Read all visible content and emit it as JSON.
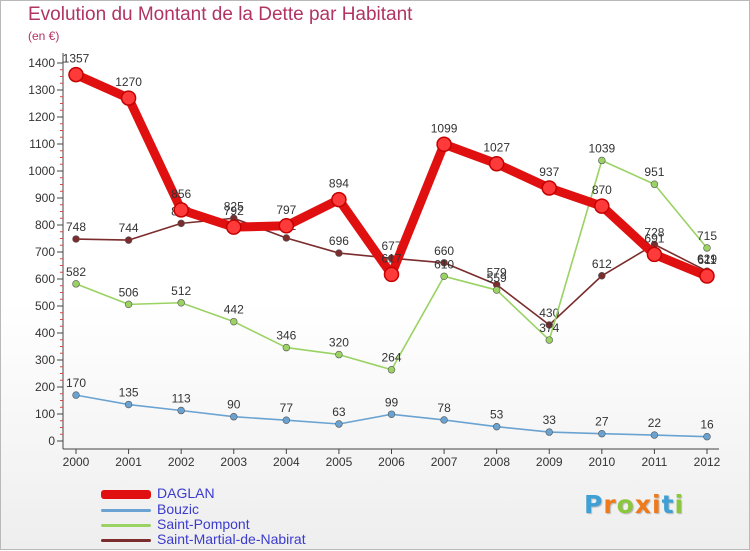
{
  "title": "Evolution du Montant de la Dette par Habitant",
  "unit_label": "(en €)",
  "logo": {
    "letters": [
      "P",
      "r",
      "o",
      "x",
      "i",
      "t",
      "i"
    ],
    "colors": [
      "#3fa0d6",
      "#f07a1a",
      "#8cc63f",
      "#f07a1a",
      "#f07a1a",
      "#3fa0d6",
      "#8cc63f"
    ]
  },
  "chart_data": {
    "type": "line",
    "x": [
      "2000",
      "2001",
      "2002",
      "2003",
      "2004",
      "2005",
      "2006",
      "2007",
      "2008",
      "2009",
      "2010",
      "2011",
      "2012"
    ],
    "ylim": [
      0,
      1400
    ],
    "yticks": [
      0,
      100,
      200,
      300,
      400,
      500,
      600,
      700,
      800,
      900,
      1000,
      1100,
      1200,
      1300,
      1400
    ],
    "grid": false,
    "legend_position": "bottom-left",
    "series": [
      {
        "name": "Saint-Martial-de-Nabirat",
        "color": "#7b2c2c",
        "values": [
          748,
          744,
          806,
          825,
          752,
          696,
          677,
          660,
          579,
          430,
          612,
          728,
          629
        ]
      },
      {
        "name": "Saint-Pompont",
        "color": "#9ad263",
        "values": [
          582,
          506,
          512,
          442,
          346,
          320,
          264,
          610,
          559,
          374,
          1039,
          951,
          715
        ]
      },
      {
        "name": "Bouzic",
        "color": "#6aa3d1",
        "values": [
          170,
          135,
          113,
          90,
          77,
          63,
          99,
          78,
          53,
          33,
          27,
          22,
          16
        ]
      },
      {
        "name": "DAGLAN",
        "color": "#e01010",
        "values": [
          1357,
          1270,
          856,
          792,
          797,
          894,
          617,
          1099,
          1027,
          937,
          870,
          691,
          611
        ]
      }
    ],
    "data_labels": [
      [
        "748",
        "744",
        "806",
        "825",
        "752",
        "696",
        "677",
        "660",
        "579",
        "430",
        "612",
        "728",
        "629"
      ],
      [
        "582",
        "506",
        "512",
        "442",
        "346",
        "320",
        "264",
        "610",
        "559",
        "374",
        "1039",
        "951",
        "715"
      ],
      [
        "170",
        "135",
        "113",
        "90",
        "77",
        "63",
        "99",
        "78",
        "53",
        "33",
        "27",
        "22",
        "16"
      ],
      [
        "1357",
        "1270",
        "856",
        "792",
        "797",
        "894",
        "617",
        "1099",
        "1027",
        "937",
        "870",
        "691",
        "611"
      ]
    ]
  },
  "legend": [
    {
      "label": "DAGLAN",
      "color": "#e01010"
    },
    {
      "label": "Bouzic",
      "color": "#6aa3d1"
    },
    {
      "label": "Saint-Pompont",
      "color": "#9ad263"
    },
    {
      "label": "Saint-Martial-de-Nabirat",
      "color": "#7b2c2c"
    }
  ]
}
